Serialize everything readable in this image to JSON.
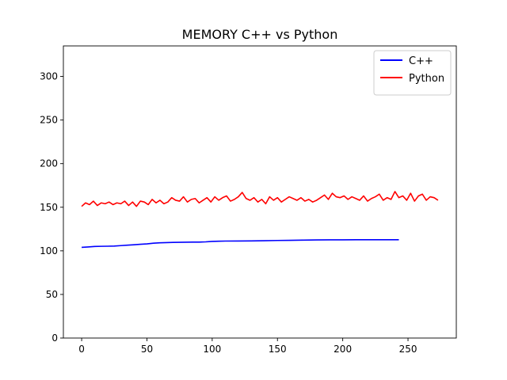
{
  "chart_data": {
    "type": "line",
    "title": "MEMORY C++ vs Python",
    "xlabel": "",
    "ylabel": "",
    "xlim": [
      -14,
      287
    ],
    "ylim": [
      0,
      335
    ],
    "xticks": [
      0,
      50,
      100,
      150,
      200,
      250
    ],
    "yticks": [
      0,
      50,
      100,
      150,
      200,
      250,
      300
    ],
    "grid": false,
    "legend": "top-right",
    "series": [
      {
        "name": "C++",
        "color": "#0000ff",
        "x": [
          0,
          5,
          10,
          15,
          20,
          25,
          30,
          35,
          40,
          45,
          50,
          55,
          60,
          65,
          70,
          75,
          80,
          85,
          90,
          95,
          100,
          105,
          110,
          120,
          130,
          140,
          150,
          160,
          170,
          180,
          190,
          200,
          210,
          220,
          230,
          243
        ],
        "y": [
          104,
          104.5,
          105,
          105.2,
          105.3,
          105.5,
          106,
          106.5,
          107,
          107.5,
          108,
          108.8,
          109.2,
          109.5,
          109.7,
          109.8,
          109.9,
          110,
          110,
          110.3,
          110.8,
          111,
          111.2,
          111.3,
          111.4,
          111.6,
          111.9,
          112.1,
          112.3,
          112.5,
          112.6,
          112.6,
          112.7,
          112.7,
          112.7,
          112.7
        ]
      },
      {
        "name": "Python",
        "color": "#ff0000",
        "x": [
          0,
          3,
          6,
          9,
          12,
          15,
          18,
          21,
          24,
          27,
          30,
          33,
          36,
          39,
          42,
          45,
          48,
          51,
          54,
          57,
          60,
          63,
          66,
          69,
          72,
          75,
          78,
          81,
          84,
          87,
          90,
          93,
          96,
          99,
          102,
          105,
          108,
          111,
          114,
          117,
          120,
          123,
          126,
          129,
          132,
          135,
          138,
          141,
          144,
          147,
          150,
          153,
          156,
          159,
          162,
          165,
          168,
          171,
          174,
          177,
          180,
          183,
          186,
          189,
          192,
          195,
          198,
          201,
          204,
          207,
          210,
          213,
          216,
          219,
          222,
          225,
          228,
          231,
          234,
          237,
          240,
          243,
          246,
          249,
          252,
          255,
          258,
          261,
          264,
          267,
          270,
          273
        ],
        "y": [
          151,
          155,
          153,
          157,
          152,
          155,
          154,
          156,
          153,
          155,
          154,
          157,
          152,
          156,
          151,
          157,
          156,
          153,
          159,
          155,
          158,
          154,
          156,
          161,
          158,
          157,
          162,
          156,
          159,
          160,
          155,
          158,
          161,
          156,
          162,
          158,
          161,
          163,
          157,
          159,
          162,
          167,
          160,
          158,
          161,
          156,
          159,
          154,
          162,
          158,
          161,
          156,
          159,
          162,
          160,
          158,
          161,
          157,
          159,
          156,
          158,
          161,
          164,
          159,
          166,
          162,
          161,
          163,
          159,
          162,
          160,
          158,
          163,
          157,
          160,
          162,
          165,
          158,
          161,
          159,
          168,
          161,
          163,
          158,
          166,
          157,
          163,
          165,
          158,
          162,
          161,
          158
        ]
      }
    ]
  }
}
